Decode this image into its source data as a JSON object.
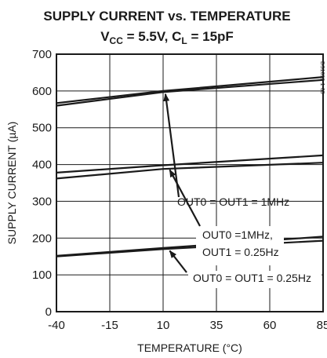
{
  "chart_data": {
    "type": "line",
    "title": "SUPPLY CURRENT vs. TEMPERATURE",
    "subtitle": {
      "v": "V",
      "v_sub": "CC",
      "v_value": " = 5.5V, C",
      "c_sub": "L",
      "c_value": " = 15pF"
    },
    "xlabel": "TEMPERATURE (°C)",
    "ylabel": "SUPPLY CURRENT (µA)",
    "xlim": [
      -40,
      85
    ],
    "ylim": [
      0,
      700
    ],
    "xticks": [
      -40,
      -15,
      10,
      35,
      60,
      85
    ],
    "yticks": [
      0,
      100,
      200,
      300,
      400,
      500,
      600,
      700
    ],
    "grid": true,
    "side_code": "DS1099-1-05",
    "series": [
      {
        "x": [
          -40,
          10,
          85
        ],
        "values": [
          567,
          600,
          638
        ]
      },
      {
        "x": [
          -40,
          10,
          85
        ],
        "values": [
          560,
          597,
          630
        ]
      },
      {
        "x": [
          -40,
          10,
          85
        ],
        "values": [
          378,
          398,
          425
        ]
      },
      {
        "x": [
          -40,
          10,
          85
        ],
        "values": [
          362,
          388,
          405
        ]
      },
      {
        "x": [
          -40,
          10,
          85
        ],
        "values": [
          152,
          173,
          204
        ]
      },
      {
        "x": [
          -40,
          10,
          85
        ],
        "values": [
          150,
          170,
          193
        ]
      }
    ],
    "annotations": [
      {
        "lines": [
          "OUT0 = OUT1 = 1MHz"
        ],
        "arrow_to": [
          10,
          598
        ]
      },
      {
        "lines": [
          "OUT0 =1MHz,",
          "OUT1 = 0.25Hz"
        ],
        "arrow_to": [
          12,
          392
        ]
      },
      {
        "lines": [
          "OUT0 = OUT1 = 0.25Hz"
        ],
        "arrow_to": [
          12,
          172
        ]
      }
    ]
  }
}
